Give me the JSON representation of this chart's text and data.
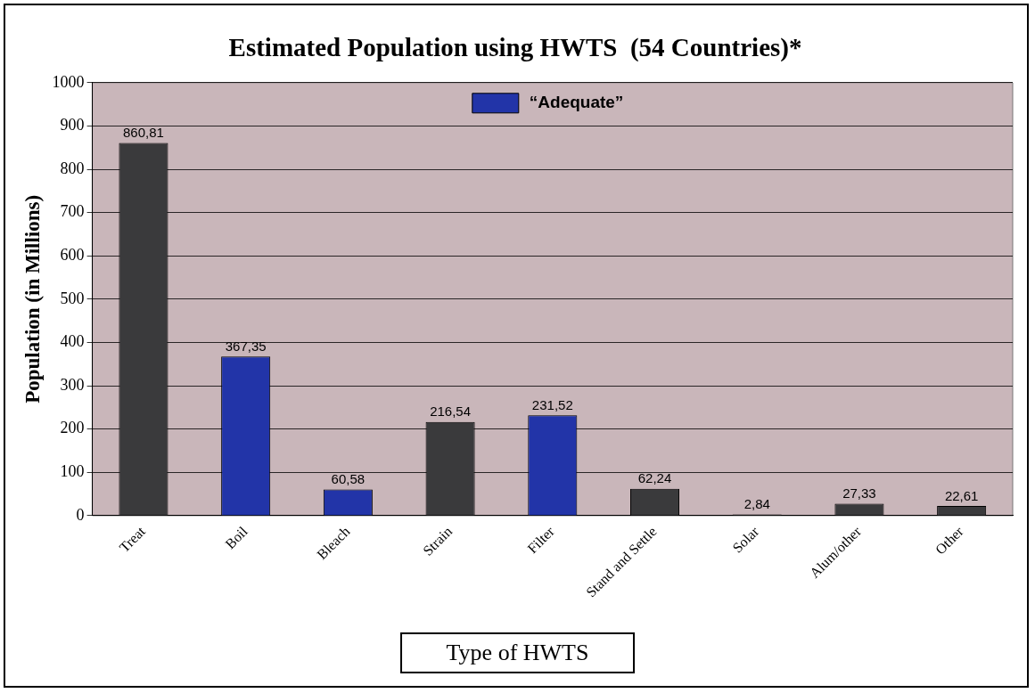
{
  "chart_data": {
    "type": "bar",
    "title": "Estimated Population using HWTS  (54 Countries)*",
    "xlabel": "Type of HWTS",
    "ylabel": "Population (in Millions)",
    "categories": [
      "Treat",
      "Boil",
      "Bleach",
      "Strain",
      "Filter",
      "Stand and Settle",
      "Solar",
      "Alum/other",
      "Other"
    ],
    "stacked": true,
    "series": [
      {
        "color": "#3a3a3c",
        "values": [
          860.81,
          null,
          null,
          216.54,
          null,
          62.24,
          2.84,
          27.33,
          22.61
        ],
        "value_labels": [
          "860,81",
          null,
          null,
          "216,54",
          null,
          "62,24",
          "2,84",
          "27,33",
          "22,61"
        ]
      },
      {
        "name": "“Adequate”",
        "color": "#2234a8",
        "values": [
          null,
          367.35,
          60.58,
          null,
          231.52,
          null,
          null,
          null,
          null
        ],
        "value_labels": [
          null,
          "367,35",
          "60,58",
          null,
          "231,52",
          null,
          null,
          null,
          null
        ]
      }
    ],
    "ylim": [
      0,
      1000
    ],
    "yticks": [
      0,
      100,
      200,
      300,
      400,
      500,
      600,
      700,
      800,
      900,
      1000
    ],
    "grid": "y",
    "legend": "top"
  }
}
